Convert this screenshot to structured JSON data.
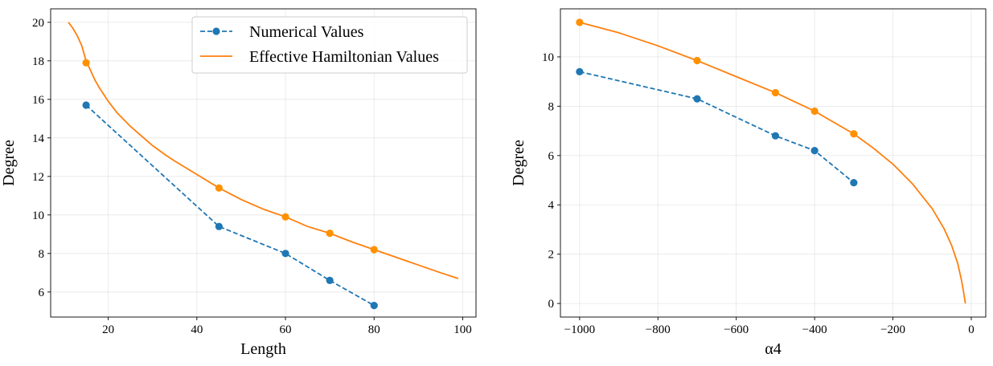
{
  "chart_data": [
    {
      "type": "line",
      "xlabel": "Length",
      "ylabel": "Degree",
      "xlim": [
        7,
        103
      ],
      "ylim": [
        4.7,
        20.7
      ],
      "xticks": [
        20,
        40,
        60,
        80,
        100
      ],
      "yticks": [
        6,
        8,
        10,
        12,
        14,
        16,
        18,
        20
      ],
      "grid": true,
      "legend_position": "top-right",
      "series": [
        {
          "name": "Numerical Values",
          "color": "#1f77b4",
          "style": "dashed",
          "marker": "circle",
          "x": [
            15,
            45,
            60,
            70,
            80
          ],
          "y": [
            15.7,
            9.4,
            8.0,
            6.6,
            5.3
          ]
        },
        {
          "name": "Effective Hamiltonian Values",
          "color": "#ff7f0e",
          "style": "solid",
          "marker": "none",
          "x": [
            11,
            12,
            13,
            14,
            15,
            16,
            17,
            18,
            20,
            22,
            25,
            28,
            30,
            33,
            35,
            40,
            45,
            50,
            55,
            60,
            65,
            70,
            75,
            80,
            85,
            90,
            95,
            99
          ],
          "y": [
            20.0,
            19.7,
            19.3,
            18.8,
            18.0,
            17.5,
            17.0,
            16.6,
            15.9,
            15.3,
            14.6,
            14.0,
            13.6,
            13.1,
            12.8,
            12.1,
            11.4,
            10.8,
            10.3,
            9.9,
            9.4,
            9.05,
            8.6,
            8.2,
            7.8,
            7.4,
            7.0,
            6.7
          ]
        },
        {
          "name": "",
          "color": "#ff9100",
          "style": "none",
          "marker": "circle",
          "x": [
            15,
            45,
            60,
            70,
            80
          ],
          "y": [
            17.9,
            11.4,
            9.9,
            9.05,
            8.2
          ]
        }
      ],
      "legend": [
        "Numerical Values",
        "Effective Hamiltonian Values"
      ]
    },
    {
      "type": "line",
      "xlabel": "α4",
      "ylabel": "Degree",
      "xlim": [
        -1049,
        37
      ],
      "ylim": [
        -0.55,
        11.95
      ],
      "xticks": [
        -1000,
        -800,
        -600,
        -400,
        -200,
        0
      ],
      "xticklabels": [
        "−1000",
        "−800",
        "−600",
        "−400",
        "−200",
        "0"
      ],
      "yticks": [
        0,
        2,
        4,
        6,
        8,
        10
      ],
      "grid": true,
      "series": [
        {
          "name": "",
          "color": "#1f77b4",
          "style": "dashed",
          "marker": "circle",
          "x": [
            -1000,
            -700,
            -500,
            -400,
            -300
          ],
          "y": [
            9.4,
            8.3,
            6.8,
            6.2,
            4.9
          ]
        },
        {
          "name": "",
          "color": "#ff7f0e",
          "style": "solid",
          "marker": "none",
          "x": [
            -1000,
            -900,
            -800,
            -700,
            -600,
            -500,
            -400,
            -300,
            -250,
            -200,
            -150,
            -100,
            -70,
            -50,
            -35,
            -25,
            -20,
            -15
          ],
          "y": [
            11.4,
            10.98,
            10.45,
            9.85,
            9.2,
            8.55,
            7.8,
            6.88,
            6.3,
            5.65,
            4.85,
            3.85,
            3.05,
            2.35,
            1.65,
            0.95,
            0.5,
            0.0
          ]
        },
        {
          "name": "",
          "color": "#ff9100",
          "style": "none",
          "marker": "circle",
          "x": [
            -1000,
            -700,
            -500,
            -400,
            -300
          ],
          "y": [
            11.4,
            9.85,
            8.55,
            7.8,
            6.88
          ]
        }
      ]
    }
  ]
}
